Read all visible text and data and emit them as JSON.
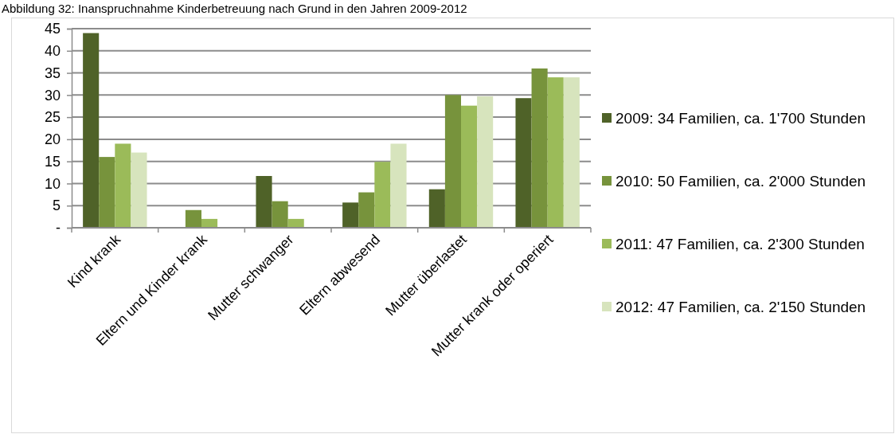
{
  "chart_data": {
    "type": "bar",
    "title": "Abbildung 32: Inanspruchnahme Kinderbetreuung nach Grund in den Jahren 2009-2012",
    "categories": [
      "Kind krank",
      "Eltern und Kinder krank",
      "Mutter schwanger",
      "Eltern abwesend",
      "Mutter überlastet",
      "Mutter krank oder operiert"
    ],
    "series": [
      {
        "name": "2009: 34 Familien, ca. 1'700 Stunden",
        "color": "#4f6228",
        "values": [
          44,
          0,
          11.7,
          5.7,
          8.7,
          29.3
        ]
      },
      {
        "name": "2010: 50 Familien, ca. 2'000 Stunden",
        "color": "#77933c",
        "values": [
          16,
          4,
          6,
          8,
          30,
          36
        ]
      },
      {
        "name": "2011: 47 Familien, ca. 2'300 Stunden",
        "color": "#9bbb59",
        "values": [
          19,
          2,
          2,
          14.9,
          27.6,
          34
        ]
      },
      {
        "name": "2012: 47 Familien, ca. 2'150 Stunden",
        "color": "#d7e4bd",
        "values": [
          17,
          0,
          0,
          19,
          29.7,
          34
        ]
      }
    ],
    "ylim": [
      0,
      45
    ],
    "yticks": [
      {
        "value": 0,
        "label": "-"
      },
      5,
      10,
      15,
      20,
      25,
      30,
      35,
      40,
      45
    ],
    "grid": "y",
    "legend": "right"
  }
}
